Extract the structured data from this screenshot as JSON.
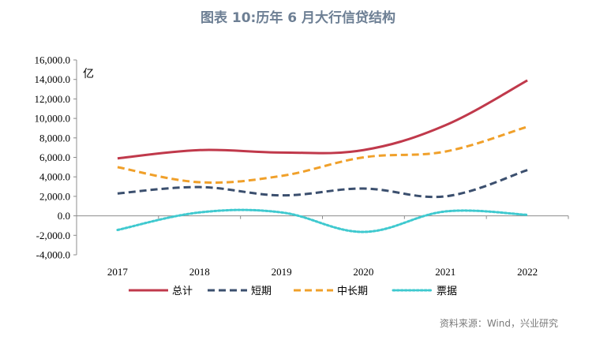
{
  "chart_data": {
    "type": "line",
    "title": "图表 10:历年 6 月大行信贷结构",
    "ylabel": "亿",
    "xlabel": "",
    "categories": [
      "2017",
      "2018",
      "2019",
      "2020",
      "2021",
      "2022"
    ],
    "ylim": [
      -4000,
      16000
    ],
    "yticks": [
      -4000,
      -2000,
      0,
      2000,
      4000,
      6000,
      8000,
      10000,
      12000,
      14000,
      16000
    ],
    "ytick_labels": [
      "-4,000.0",
      "-2,000.0",
      "0.0",
      "2,000.0",
      "4,000.0",
      "6,000.0",
      "8,000.0",
      "10,000.0",
      "12,000.0",
      "14,000.0",
      "16,000.0"
    ],
    "series": [
      {
        "name": "总计",
        "values": [
          5900,
          6750,
          6500,
          6750,
          9300,
          13900
        ],
        "color": "#c0394b",
        "style": "solid"
      },
      {
        "name": "短期",
        "values": [
          2300,
          2950,
          2100,
          2800,
          2000,
          4700
        ],
        "color": "#3b4f6e",
        "style": "dashed"
      },
      {
        "name": "中长期",
        "values": [
          5000,
          3450,
          4100,
          6000,
          6600,
          9150
        ],
        "color": "#f0a02a",
        "style": "dashed"
      },
      {
        "name": "票据",
        "values": [
          -1450,
          350,
          350,
          -1650,
          450,
          100
        ],
        "color": "#3fc9cf",
        "style": "dotted"
      }
    ],
    "legend_position": "bottom"
  },
  "source": "资料来源：Wind，兴业研究"
}
